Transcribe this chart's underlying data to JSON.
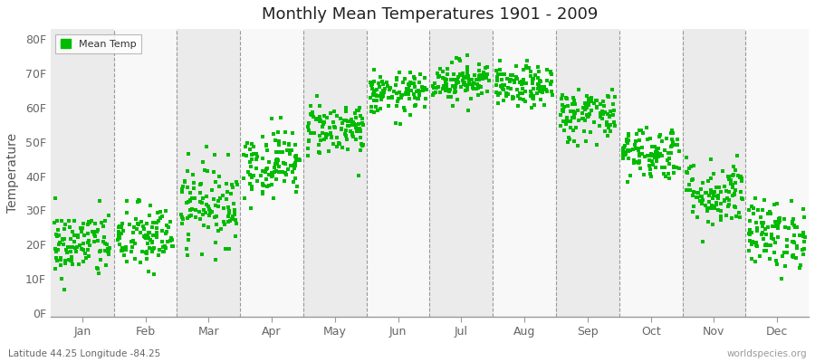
{
  "title": "Monthly Mean Temperatures 1901 - 2009",
  "ylabel": "Temperature",
  "bottom_left_label": "Latitude 44.25 Longitude -84.25",
  "bottom_right_label": "worldspecies.org",
  "legend_label": "Mean Temp",
  "dot_color": "#00bb00",
  "background_color": "#ffffff",
  "plot_bg_color": "#ffffff",
  "ytick_labels": [
    "0F",
    "10F",
    "20F",
    "30F",
    "40F",
    "50F",
    "60F",
    "70F",
    "80F"
  ],
  "ytick_values": [
    0,
    10,
    20,
    30,
    40,
    50,
    60,
    70,
    80
  ],
  "ylim": [
    -1,
    83
  ],
  "months": [
    "Jan",
    "Feb",
    "Mar",
    "Apr",
    "May",
    "Jun",
    "Jul",
    "Aug",
    "Sep",
    "Oct",
    "Nov",
    "Dec"
  ],
  "n_years": 109,
  "monthly_means": [
    20,
    22,
    32,
    44,
    54,
    64,
    68,
    66,
    58,
    47,
    35,
    23
  ],
  "monthly_stds": [
    5,
    5,
    6,
    5,
    4,
    3,
    3,
    3,
    4,
    4,
    5,
    5
  ]
}
